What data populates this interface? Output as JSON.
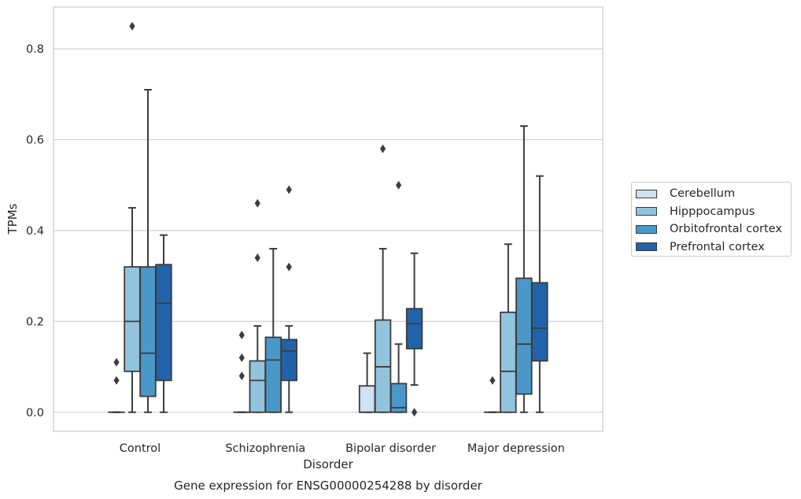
{
  "chart_data": {
    "type": "box",
    "title": "Gene expression for ENSG00000254288 by disorder",
    "xlabel": "Disorder",
    "ylabel": "TPMs",
    "ylim": [
      -0.042,
      0.892
    ],
    "yticks": [
      0.0,
      0.2,
      0.4,
      0.6,
      0.8
    ],
    "ytick_labels": [
      "0.0",
      "0.2",
      "0.4",
      "0.6",
      "0.8"
    ],
    "grid": "horizontal",
    "legend_position": "outside right",
    "categories": [
      "Control",
      "Schizophrenia",
      "Bipolar disorder",
      "Major depression"
    ],
    "series": [
      {
        "name": "Cerebellum",
        "color": "#cfe1f2",
        "boxes": [
          {
            "whislo": 0.0,
            "q1": 0.0,
            "med": 0.0,
            "q3": 0.0,
            "whishi": 0.0,
            "fliers": []
          },
          {
            "whislo": 0.0,
            "q1": 0.0,
            "med": 0.0,
            "q3": 0.0,
            "whishi": 0.0,
            "fliers": []
          },
          {
            "whislo": 0.0,
            "q1": 0.0,
            "med": 0.0,
            "q3": 0.058,
            "whishi": 0.13,
            "fliers": []
          },
          {
            "whislo": 0.0,
            "q1": 0.0,
            "med": 0.0,
            "q3": 0.0,
            "whishi": 0.0,
            "fliers": []
          }
        ]
      },
      {
        "name": "Hipppocampus",
        "color": "#93c4de",
        "boxes": [
          {
            "whislo": 0.0,
            "q1": 0.09,
            "med": 0.2,
            "q3": 0.32,
            "whishi": 0.45,
            "fliers": [
              0.85
            ]
          },
          {
            "whislo": 0.0,
            "q1": 0.0,
            "med": 0.07,
            "q3": 0.113,
            "whishi": 0.19,
            "fliers": [
              0.34,
              0.46
            ]
          },
          {
            "whislo": 0.0,
            "q1": 0.0,
            "med": 0.1,
            "q3": 0.203,
            "whishi": 0.36,
            "fliers": [
              0.58
            ]
          },
          {
            "whislo": 0.0,
            "q1": 0.0,
            "med": 0.09,
            "q3": 0.22,
            "whishi": 0.37,
            "fliers": []
          }
        ]
      },
      {
        "name": "Orbitofrontal cortex",
        "color": "#4a98c9",
        "boxes": [
          {
            "whislo": 0.0,
            "q1": 0.035,
            "med": 0.13,
            "q3": 0.32,
            "whishi": 0.71,
            "fliers": []
          },
          {
            "whislo": 0.0,
            "q1": 0.0,
            "med": 0.115,
            "q3": 0.165,
            "whishi": 0.36,
            "fliers": []
          },
          {
            "whislo": 0.0,
            "q1": 0.0,
            "med": 0.01,
            "q3": 0.063,
            "whishi": 0.15,
            "fliers": [
              0.5
            ]
          },
          {
            "whislo": 0.0,
            "q1": 0.04,
            "med": 0.15,
            "q3": 0.295,
            "whishi": 0.63,
            "fliers": []
          }
        ]
      },
      {
        "name": "Prefrontal cortex",
        "color": "#2163aa",
        "boxes": [
          {
            "whislo": 0.0,
            "q1": 0.07,
            "med": 0.24,
            "q3": 0.325,
            "whishi": 0.39,
            "fliers": []
          },
          {
            "whislo": 0.0,
            "q1": 0.07,
            "med": 0.135,
            "q3": 0.16,
            "whishi": 0.19,
            "fliers": [
              0.32,
              0.49
            ]
          },
          {
            "whislo": 0.06,
            "q1": 0.14,
            "med": 0.195,
            "q3": 0.228,
            "whishi": 0.35,
            "fliers": [
              0.0
            ]
          },
          {
            "whislo": 0.0,
            "q1": 0.113,
            "med": 0.185,
            "q3": 0.285,
            "whishi": 0.52,
            "fliers": []
          }
        ]
      }
    ],
    "extra_fliers": [
      {
        "category": 0,
        "series": 0,
        "values": [
          0.07,
          0.11
        ]
      },
      {
        "category": 1,
        "series": 0,
        "values": [
          0.08,
          0.12,
          0.17
        ]
      },
      {
        "category": 3,
        "series": 0,
        "values": [
          0.07
        ]
      }
    ]
  }
}
